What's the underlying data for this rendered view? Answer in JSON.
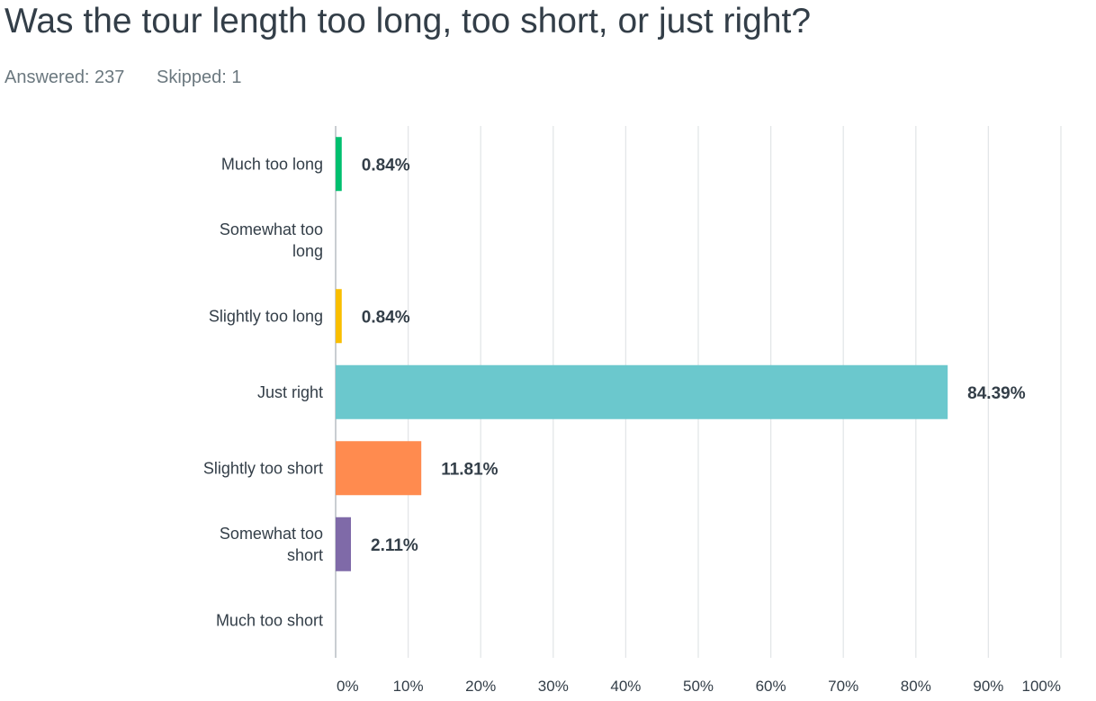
{
  "question": {
    "title": "Was the tour length too long, too short, or just right?",
    "answered": "Answered: 237",
    "skipped": "Skipped: 1"
  },
  "chart_data": {
    "type": "bar",
    "orientation": "horizontal",
    "categories": [
      "Much too long",
      "Somewhat too long",
      "Slightly too long",
      "Just right",
      "Slightly too short",
      "Somewhat too short",
      "Much too short"
    ],
    "values": [
      0.84,
      0,
      0.84,
      84.39,
      11.81,
      2.11,
      0
    ],
    "value_labels": [
      "0.84%",
      "",
      "0.84%",
      "84.39%",
      "11.81%",
      "2.11%",
      ""
    ],
    "colors": [
      "#00bf6f",
      "#507cb6",
      "#f9be00",
      "#6bc8cd",
      "#ff8b4f",
      "#7f6aa8",
      "#d25f90"
    ],
    "xlim": [
      0,
      100
    ],
    "ticks": [
      "0%",
      "10%",
      "20%",
      "30%",
      "40%",
      "50%",
      "60%",
      "70%",
      "80%",
      "90%",
      "100%"
    ],
    "tick_values": [
      0,
      10,
      20,
      30,
      40,
      50,
      60,
      70,
      80,
      90,
      100
    ],
    "grid": true
  }
}
